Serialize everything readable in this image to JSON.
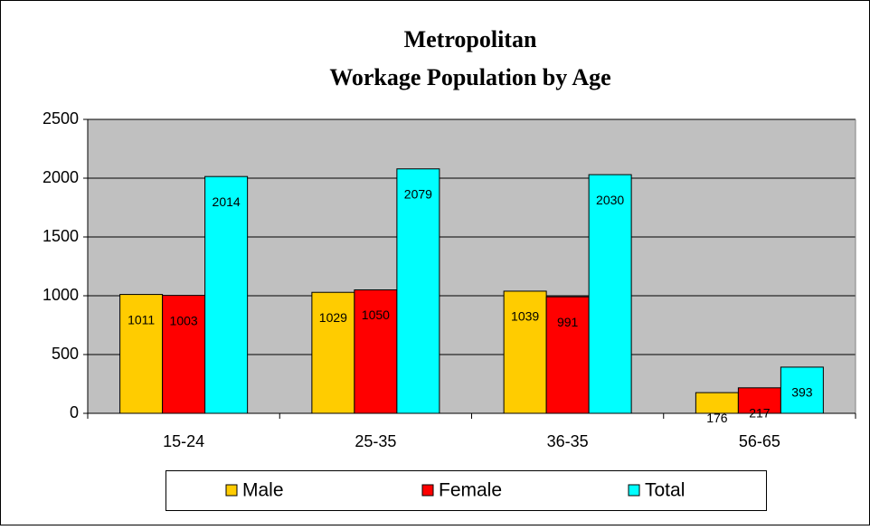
{
  "chart_data": {
    "type": "bar",
    "title": [
      "Metropolitan",
      "Workage Population by Age"
    ],
    "categories": [
      "15-24",
      "25-35",
      "36-35",
      "56-65"
    ],
    "series": [
      {
        "name": "Male",
        "color": "#ffcc00",
        "values": [
          1011,
          1029,
          1039,
          176
        ]
      },
      {
        "name": "Female",
        "color": "#ff0000",
        "values": [
          1003,
          1050,
          991,
          217
        ]
      },
      {
        "name": "Total",
        "color": "#00ffff",
        "values": [
          2014,
          2079,
          2030,
          393
        ]
      }
    ],
    "ylim": [
      0,
      2500
    ],
    "yticks": [
      0,
      500,
      1000,
      1500,
      2000,
      2500
    ],
    "grid": true,
    "plot_background": "#c0c0c0",
    "legend": "bottom"
  }
}
